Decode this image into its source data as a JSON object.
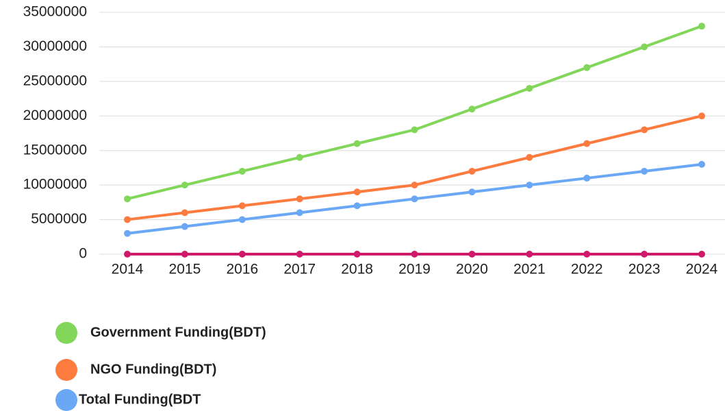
{
  "chart_data": {
    "type": "line",
    "categories": [
      "2014",
      "2015",
      "2016",
      "2017",
      "2018",
      "2019",
      "2020",
      "2021",
      "2022",
      "2023",
      "2024"
    ],
    "series": [
      {
        "name": "Government Funding(BDT)",
        "color": "#82d65a",
        "values": [
          8000000,
          10000000,
          12000000,
          14000000,
          16000000,
          18000000,
          21000000,
          24000000,
          27000000,
          30000000,
          33000000
        ]
      },
      {
        "name": "NGO Funding(BDT)",
        "color": "#fd7b3f",
        "values": [
          5000000,
          6000000,
          7000000,
          8000000,
          9000000,
          10000000,
          12000000,
          14000000,
          16000000,
          18000000,
          20000000
        ]
      },
      {
        "name": "Total Funding(BDT",
        "color": "#6aa8f5",
        "values": [
          3000000,
          4000000,
          5000000,
          6000000,
          7000000,
          8000000,
          9000000,
          10000000,
          11000000,
          12000000,
          13000000
        ]
      },
      {
        "color": "#d0196b",
        "values": [
          0,
          0,
          0,
          0,
          0,
          0,
          0,
          0,
          0,
          0,
          0
        ]
      }
    ],
    "ylim": [
      0,
      35000000
    ],
    "yticks": [
      0,
      5000000,
      10000000,
      15000000,
      20000000,
      25000000,
      30000000,
      35000000
    ],
    "grid": true
  }
}
